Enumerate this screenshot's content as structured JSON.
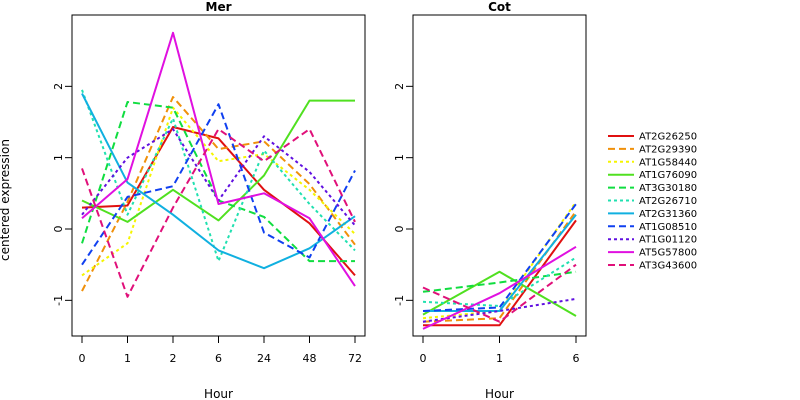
{
  "chart_data": [
    {
      "type": "line",
      "title": "Mer",
      "xlabel": "Hour",
      "ylabel": "centered expression",
      "categories": [
        "0",
        "1",
        "2",
        "6",
        "24",
        "48",
        "72"
      ],
      "ylim": [
        -1.5,
        3.0
      ],
      "yticks": [
        "-1",
        "0",
        "1",
        "2"
      ],
      "series": [
        {
          "name": "AT2G26250",
          "values": [
            0.3,
            0.33,
            1.43,
            1.27,
            0.55,
            0.08,
            -0.65
          ]
        },
        {
          "name": "AT2G29390",
          "values": [
            -0.87,
            0.38,
            1.85,
            1.12,
            1.23,
            0.63,
            -0.22
          ]
        },
        {
          "name": "AT1G58440",
          "values": [
            -0.65,
            -0.2,
            1.7,
            0.95,
            1.05,
            0.55,
            -0.07
          ]
        },
        {
          "name": "AT1G76090",
          "values": [
            0.4,
            0.1,
            0.55,
            0.12,
            0.75,
            1.8,
            1.8
          ]
        },
        {
          "name": "AT3G30180",
          "values": [
            -0.2,
            1.78,
            1.7,
            0.4,
            0.17,
            -0.45,
            -0.45
          ]
        },
        {
          "name": "AT2G26710",
          "values": [
            1.95,
            0.2,
            1.55,
            -0.45,
            1.1,
            0.35,
            -0.3
          ]
        },
        {
          "name": "AT2G31360",
          "values": [
            1.9,
            0.65,
            0.2,
            -0.3,
            -0.55,
            -0.27,
            0.18
          ]
        },
        {
          "name": "AT1G08510",
          "values": [
            -0.5,
            0.45,
            0.6,
            1.75,
            -0.05,
            -0.4,
            0.82
          ]
        },
        {
          "name": "AT1G01120",
          "values": [
            0.2,
            1.0,
            1.4,
            0.4,
            1.3,
            0.8,
            0.05
          ]
        },
        {
          "name": "AT5G57800",
          "values": [
            0.15,
            0.7,
            2.75,
            0.35,
            0.5,
            0.15,
            -0.8
          ]
        },
        {
          "name": "AT3G43600",
          "values": [
            0.85,
            -0.95,
            0.3,
            1.4,
            0.95,
            1.4,
            0.1
          ]
        }
      ]
    },
    {
      "type": "line",
      "title": "Cot",
      "xlabel": "Hour",
      "categories": [
        "0",
        "1",
        "6"
      ],
      "ylim": [
        -1.5,
        3.0
      ],
      "yticks": [
        "-1",
        "0",
        "1",
        "2"
      ],
      "series": [
        {
          "name": "AT2G26250",
          "values": [
            -1.35,
            -1.35,
            0.12
          ]
        },
        {
          "name": "AT2G29390",
          "values": [
            -1.3,
            -1.25,
            0.25
          ]
        },
        {
          "name": "AT1G58440",
          "values": [
            -1.25,
            -1.15,
            0.38
          ]
        },
        {
          "name": "AT1G76090",
          "values": [
            -1.2,
            -0.6,
            -1.22
          ]
        },
        {
          "name": "AT3G30180",
          "values": [
            -0.88,
            -0.75,
            -0.6
          ]
        },
        {
          "name": "AT2G26710",
          "values": [
            -1.02,
            -1.08,
            -0.4
          ]
        },
        {
          "name": "AT2G31360",
          "values": [
            -1.15,
            -1.15,
            0.2
          ]
        },
        {
          "name": "AT1G08510",
          "values": [
            -1.15,
            -1.1,
            0.35
          ]
        },
        {
          "name": "AT1G01120",
          "values": [
            -1.3,
            -1.15,
            -0.98
          ]
        },
        {
          "name": "AT5G57800",
          "values": [
            -1.4,
            -0.9,
            -0.25
          ]
        },
        {
          "name": "AT3G43600",
          "values": [
            -0.82,
            -1.3,
            -0.5
          ]
        }
      ]
    }
  ],
  "legend": {
    "placement": "right",
    "items": [
      {
        "name": "AT2G26250",
        "color": "#e01010",
        "dash": "solid"
      },
      {
        "name": "AT2G29390",
        "color": "#f0900a",
        "dash": "dashed"
      },
      {
        "name": "AT1G58440",
        "color": "#f5f500",
        "dash": "dotted"
      },
      {
        "name": "AT1G76090",
        "color": "#50e020",
        "dash": "solid"
      },
      {
        "name": "AT3G30180",
        "color": "#10dd40",
        "dash": "dashed"
      },
      {
        "name": "AT2G26710",
        "color": "#20e0b0",
        "dash": "dotted"
      },
      {
        "name": "AT2G31360",
        "color": "#10b0e0",
        "dash": "solid"
      },
      {
        "name": "AT1G08510",
        "color": "#1040f0",
        "dash": "dashed"
      },
      {
        "name": "AT1G01120",
        "color": "#6010e0",
        "dash": "dotted"
      },
      {
        "name": "AT5G57800",
        "color": "#e010e0",
        "dash": "solid"
      },
      {
        "name": "AT3G43600",
        "color": "#e0107a",
        "dash": "dashed"
      }
    ]
  }
}
